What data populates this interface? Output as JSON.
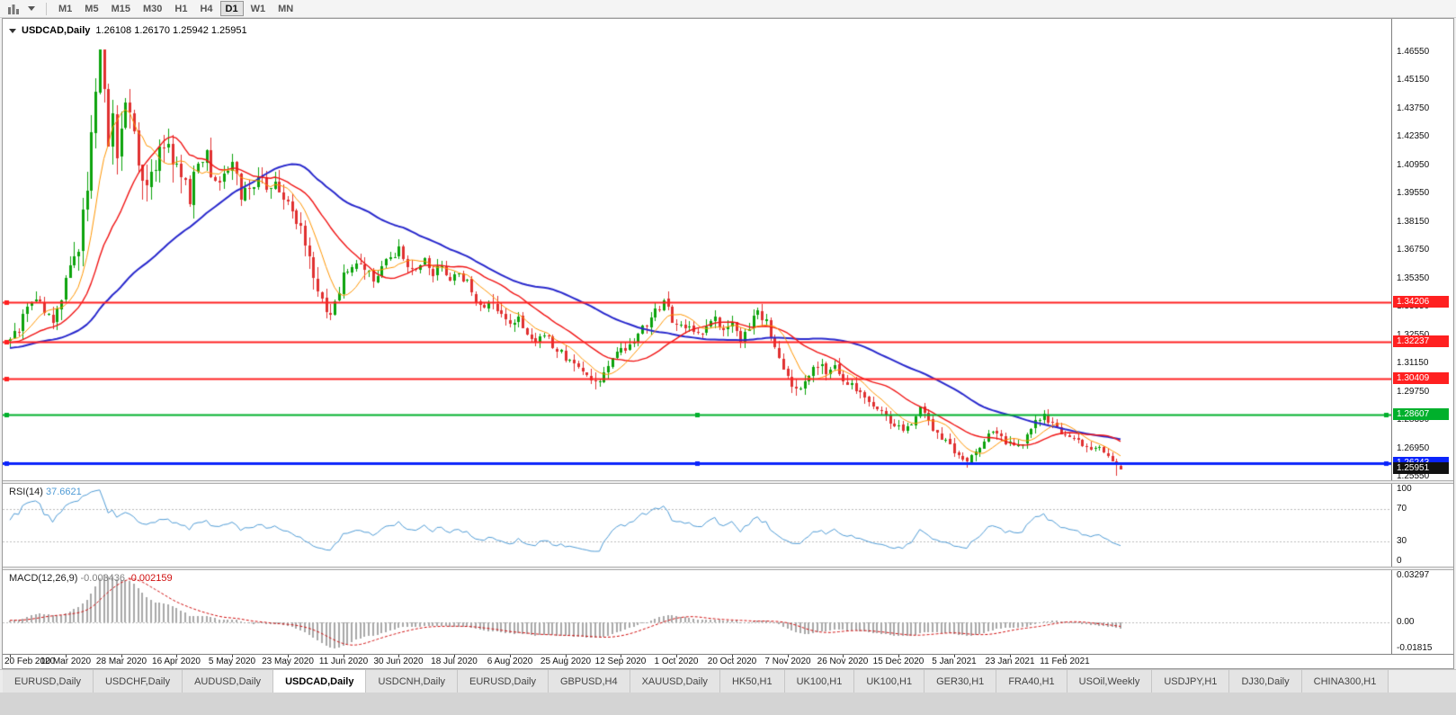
{
  "toolbar": {
    "timeframes": [
      "M1",
      "M5",
      "M15",
      "M30",
      "H1",
      "H4",
      "D1",
      "W1",
      "MN"
    ],
    "active": "D1"
  },
  "chart": {
    "symbol": "USDCAD,Daily",
    "ohlc_text": "1.26108 1.26170 1.25942 1.25951",
    "price_axis": [
      "1.46550",
      "1.45150",
      "1.43750",
      "1.42350",
      "1.40950",
      "1.39550",
      "1.38150",
      "1.36750",
      "1.35350",
      "1.33950",
      "1.32550",
      "1.31150",
      "1.29750",
      "1.28350",
      "1.26950",
      "1.25550"
    ],
    "scale": {
      "top": 1.4655,
      "bottom": 1.2547
    },
    "hlines": [
      {
        "price": 1.34206,
        "label": "1.34206",
        "color": "#ff2020",
        "width": 2,
        "handles": "left"
      },
      {
        "price": 1.32237,
        "label": "1.32237",
        "color": "#ff2020",
        "width": 2,
        "handles": "left"
      },
      {
        "price": 1.30409,
        "label": "1.30409",
        "color": "#ff2020",
        "width": 2,
        "handles": "left"
      },
      {
        "price": 1.28607,
        "label": "1.28607",
        "color": "#00b02c",
        "width": 2,
        "handles": "all"
      },
      {
        "price": 1.26243,
        "label": "1.26243",
        "color": "#0b24fb",
        "width": 3,
        "handles": "all"
      }
    ],
    "current_price": {
      "label": "1.25951",
      "value": 1.25951
    },
    "last_candle": {
      "o": 1.26108,
      "h": 1.2617,
      "l": 1.25942,
      "c": 1.25951
    },
    "prev_candle_low": 1.256,
    "dates": [
      "20 Feb 2020",
      "10 Mar 2020",
      "28 Mar 2020",
      "16 Apr 2020",
      "5 May 2020",
      "23 May 2020",
      "11 Jun 2020",
      "30 Jun 2020",
      "18 Jul 2020",
      "6 Aug 2020",
      "25 Aug 2020",
      "12 Sep 2020",
      "1 Oct 2020",
      "20 Oct 2020",
      "7 Nov 2020",
      "26 Nov 2020",
      "15 Dec 2020",
      "5 Jan 2021",
      "23 Jan 2021",
      "11 Feb 2021"
    ],
    "anchors": [
      [
        0,
        1.3245
      ],
      [
        2,
        1.329
      ],
      [
        4,
        1.3385
      ],
      [
        6,
        1.3435
      ],
      [
        8,
        1.336
      ],
      [
        10,
        1.333
      ],
      [
        12,
        1.3415
      ],
      [
        14,
        1.356
      ],
      [
        16,
        1.372
      ],
      [
        18,
        1.4
      ],
      [
        19,
        1.428
      ],
      [
        20,
        1.45
      ],
      [
        21,
        1.4648
      ],
      [
        22,
        1.442
      ],
      [
        23,
        1.421
      ],
      [
        24,
        1.43
      ],
      [
        25,
        1.416
      ],
      [
        26,
        1.431
      ],
      [
        27,
        1.443
      ],
      [
        28,
        1.434
      ],
      [
        30,
        1.409
      ],
      [
        32,
        1.397
      ],
      [
        34,
        1.41
      ],
      [
        36,
        1.419
      ],
      [
        38,
        1.411
      ],
      [
        40,
        1.402
      ],
      [
        42,
        1.3955
      ],
      [
        44,
        1.4085
      ],
      [
        46,
        1.414
      ],
      [
        48,
        1.399
      ],
      [
        50,
        1.407
      ],
      [
        52,
        1.4125
      ],
      [
        54,
        1.3945
      ],
      [
        56,
        1.3985
      ],
      [
        58,
        1.405
      ],
      [
        60,
        1.3975
      ],
      [
        62,
        1.4005
      ],
      [
        64,
        1.392
      ],
      [
        65,
        1.394
      ],
      [
        66,
        1.3845
      ],
      [
        68,
        1.3785
      ],
      [
        70,
        1.361
      ],
      [
        72,
        1.348
      ],
      [
        74,
        1.3395
      ],
      [
        75,
        1.334
      ],
      [
        77,
        1.349
      ],
      [
        79,
        1.359
      ],
      [
        81,
        1.3625
      ],
      [
        83,
        1.356
      ],
      [
        85,
        1.353
      ],
      [
        87,
        1.3605
      ],
      [
        89,
        1.3645
      ],
      [
        91,
        1.3685
      ],
      [
        93,
        1.3605
      ],
      [
        95,
        1.357
      ],
      [
        97,
        1.3625
      ],
      [
        99,
        1.3565
      ],
      [
        101,
        1.3585
      ],
      [
        103,
        1.3545
      ],
      [
        105,
        1.3575
      ],
      [
        107,
        1.3515
      ],
      [
        109,
        1.3415
      ],
      [
        111,
        1.339
      ],
      [
        113,
        1.3425
      ],
      [
        115,
        1.3355
      ],
      [
        117,
        1.3295
      ],
      [
        119,
        1.3335
      ],
      [
        121,
        1.3265
      ],
      [
        123,
        1.3235
      ],
      [
        125,
        1.3275
      ],
      [
        127,
        1.3195
      ],
      [
        129,
        1.3165
      ],
      [
        131,
        1.3135
      ],
      [
        133,
        1.3085
      ],
      [
        135,
        1.3055
      ],
      [
        137,
        1.3025
      ],
      [
        139,
        1.3065
      ],
      [
        141,
        1.3125
      ],
      [
        143,
        1.3185
      ],
      [
        145,
        1.3215
      ],
      [
        147,
        1.3265
      ],
      [
        149,
        1.3315
      ],
      [
        151,
        1.3385
      ],
      [
        153,
        1.3415
      ],
      [
        155,
        1.3335
      ],
      [
        157,
        1.3315
      ],
      [
        159,
        1.3285
      ],
      [
        161,
        1.3255
      ],
      [
        163,
        1.3295
      ],
      [
        165,
        1.3325
      ],
      [
        167,
        1.3285
      ],
      [
        169,
        1.3315
      ],
      [
        171,
        1.3235
      ],
      [
        173,
        1.3285
      ],
      [
        175,
        1.3375
      ],
      [
        177,
        1.3315
      ],
      [
        179,
        1.3185
      ],
      [
        181,
        1.3065
      ],
      [
        183,
        1.3015
      ],
      [
        185,
        1.2985
      ],
      [
        187,
        1.3055
      ],
      [
        189,
        1.3105
      ],
      [
        191,
        1.3075
      ],
      [
        193,
        1.3095
      ],
      [
        195,
        1.3045
      ],
      [
        197,
        1.3005
      ],
      [
        199,
        1.2965
      ],
      [
        201,
        1.2935
      ],
      [
        203,
        1.2885
      ],
      [
        205,
        1.2845
      ],
      [
        207,
        1.2815
      ],
      [
        209,
        1.2775
      ],
      [
        211,
        1.282
      ],
      [
        213,
        1.2895
      ],
      [
        214,
        1.2875
      ],
      [
        216,
        1.279
      ],
      [
        218,
        1.2755
      ],
      [
        220,
        1.2705
      ],
      [
        222,
        1.2655
      ],
      [
        224,
        1.263
      ],
      [
        226,
        1.268
      ],
      [
        228,
        1.2745
      ],
      [
        230,
        1.278
      ],
      [
        232,
        1.274
      ],
      [
        234,
        1.2725
      ],
      [
        236,
        1.2695
      ],
      [
        238,
        1.276
      ],
      [
        240,
        1.282
      ],
      [
        242,
        1.286
      ],
      [
        244,
        1.282
      ],
      [
        246,
        1.278
      ],
      [
        248,
        1.2755
      ],
      [
        250,
        1.2725
      ],
      [
        252,
        1.2695
      ],
      [
        254,
        1.2715
      ],
      [
        256,
        1.269
      ],
      [
        257,
        1.266
      ],
      [
        258,
        1.263
      ],
      [
        259,
        1.2611
      ],
      [
        260,
        1.25951
      ]
    ]
  },
  "rsi": {
    "name": "RSI(14)",
    "value": "37.6621",
    "axis": [
      "100",
      "70",
      "30",
      "0"
    ],
    "guides": [
      70,
      30
    ]
  },
  "macd": {
    "name": "MACD(12,26,9)",
    "value_main": "-0.003436",
    "value_signal": "-0.002159",
    "axis": [
      {
        "text": "0.03297",
        "value": 0.03297
      },
      {
        "text": "0.00",
        "value": 0
      },
      {
        "text": "-0.01815",
        "value": -0.01815
      }
    ]
  },
  "tabs": {
    "active_index": 3,
    "labels": [
      "EURUSD,Daily",
      "USDCHF,Daily",
      "AUDUSD,Daily",
      "USDCAD,Daily",
      "USDCNH,Daily",
      "EURUSD,Daily",
      "GBPUSD,H4",
      "XAUUSD,Daily",
      "HK50,H1",
      "UK100,H1",
      "UK100,H1",
      "GER30,H1",
      "FRA40,H1",
      "USOil,Weekly",
      "USDJPY,H1",
      "DJ30,Daily",
      "CHINA300,H1"
    ]
  },
  "colors": {
    "candle_up": "#0ba30b",
    "candle_down": "#e03030",
    "ma_fast": "#ff9500",
    "ma_mid": "#f01414",
    "ma_slow": "#2828cc",
    "rsi_line": "#4f9bd5",
    "macd_hist": "#a8a8a8",
    "macd_signal": "#d01010",
    "guide": "#bbbbbb",
    "current_tag_bg": "#111111"
  }
}
